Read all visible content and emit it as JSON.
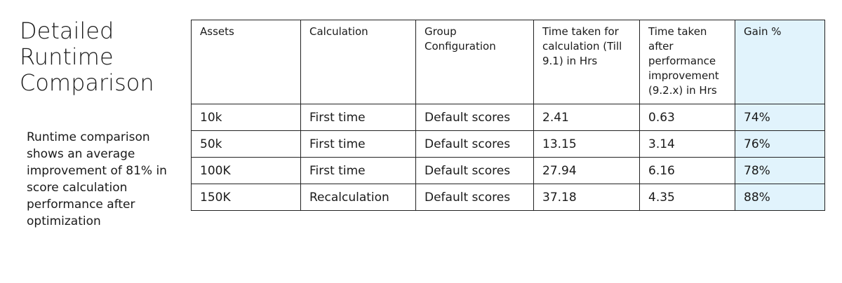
{
  "slide": {
    "title": "Detailed Runtime Comparison",
    "description": "Runtime comparison shows an average improvement of 81% in score calculation performance after optimization"
  },
  "table": {
    "header": [
      "Assets",
      "Calculation",
      "Group Configuration",
      "Time taken for calculation (Till 9.1) in Hrs",
      "Time taken after performance improvement (9.2.x) in Hrs",
      "Gain %"
    ],
    "rows": [
      [
        "10k",
        "First time",
        "Default scores",
        "2.41",
        "0.63",
        "74%"
      ],
      [
        "50k",
        "First time",
        "Default scores",
        "13.15",
        "3.14",
        "76%"
      ],
      [
        "100K",
        "First time",
        "Default scores",
        "27.94",
        "6.16",
        "78%"
      ],
      [
        "150K",
        "Recalculation",
        "Default scores",
        "37.18",
        "4.35",
        "88%"
      ]
    ]
  }
}
